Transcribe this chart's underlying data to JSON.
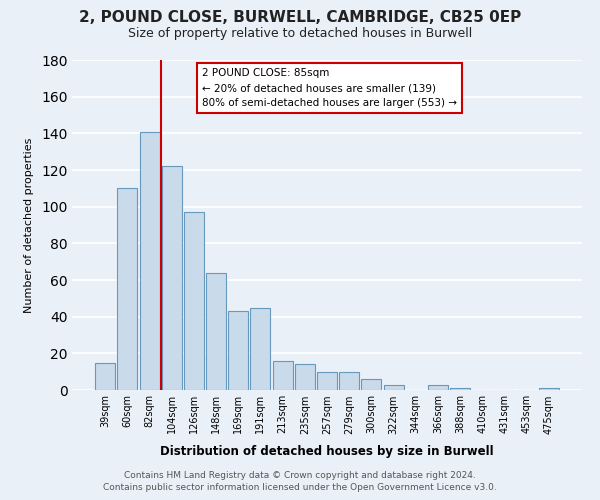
{
  "title": "2, POUND CLOSE, BURWELL, CAMBRIDGE, CB25 0EP",
  "subtitle": "Size of property relative to detached houses in Burwell",
  "xlabel": "Distribution of detached houses by size in Burwell",
  "ylabel": "Number of detached properties",
  "bar_labels": [
    "39sqm",
    "60sqm",
    "82sqm",
    "104sqm",
    "126sqm",
    "148sqm",
    "169sqm",
    "191sqm",
    "213sqm",
    "235sqm",
    "257sqm",
    "279sqm",
    "300sqm",
    "322sqm",
    "344sqm",
    "366sqm",
    "388sqm",
    "410sqm",
    "431sqm",
    "453sqm",
    "475sqm"
  ],
  "bar_values": [
    15,
    110,
    141,
    122,
    97,
    64,
    43,
    45,
    16,
    14,
    10,
    10,
    6,
    3,
    0,
    3,
    1,
    0,
    0,
    0,
    1
  ],
  "bar_color": "#c9daea",
  "bar_edge_color": "#6699bb",
  "background_color": "#eaf0f8",
  "grid_color": "#ffffff",
  "ylim": [
    0,
    180
  ],
  "yticks": [
    0,
    20,
    40,
    60,
    80,
    100,
    120,
    140,
    160,
    180
  ],
  "vline_color": "#cc0000",
  "annotation_title": "2 POUND CLOSE: 85sqm",
  "annotation_line1": "← 20% of detached houses are smaller (139)",
  "annotation_line2": "80% of semi-detached houses are larger (553) →",
  "annotation_box_color": "#ffffff",
  "annotation_box_edge": "#cc0000",
  "footer_line1": "Contains HM Land Registry data © Crown copyright and database right 2024.",
  "footer_line2": "Contains public sector information licensed under the Open Government Licence v3.0."
}
